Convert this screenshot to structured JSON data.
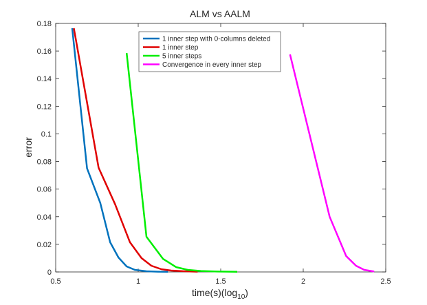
{
  "chart_data": {
    "type": "line",
    "title": "ALM vs AALM",
    "xlabel": "time(s)(log",
    "xlabel_sub": "10",
    "xlabel_close": ")",
    "ylabel": "error",
    "xlim": [
      0.5,
      2.5
    ],
    "ylim": [
      0,
      0.18
    ],
    "xticks": [
      0.5,
      1,
      1.5,
      2,
      2.5
    ],
    "xtick_labels": [
      "0.5",
      "1",
      "1.5",
      "2",
      "2.5"
    ],
    "yticks": [
      0,
      0.02,
      0.04,
      0.06,
      0.08,
      0.1,
      0.12,
      0.14,
      0.16,
      0.18
    ],
    "ytick_labels": [
      "0",
      "0.02",
      "0.04",
      "0.06",
      "0.08",
      "0.1",
      "0.12",
      "0.14",
      "0.16",
      "0.18"
    ],
    "grid": false,
    "legend_position": "top-center",
    "series": [
      {
        "name": "1 inner step with 0-columns deleted",
        "color": "#0072bd",
        "points": [
          [
            0.6,
            0.1765
          ],
          [
            0.69,
            0.075
          ],
          [
            0.77,
            0.05
          ],
          [
            0.83,
            0.0215
          ],
          [
            0.88,
            0.0105
          ],
          [
            0.93,
            0.004
          ],
          [
            0.98,
            0.0015
          ],
          [
            1.05,
            0.0005
          ],
          [
            1.12,
            0.0002
          ],
          [
            1.18,
            0.0001
          ]
        ]
      },
      {
        "name": "1 inner step",
        "color": "#e00000",
        "points": [
          [
            0.61,
            0.1765
          ],
          [
            0.76,
            0.0755
          ],
          [
            0.86,
            0.049
          ],
          [
            0.95,
            0.0215
          ],
          [
            1.02,
            0.01
          ],
          [
            1.08,
            0.0045
          ],
          [
            1.14,
            0.002
          ],
          [
            1.2,
            0.001
          ],
          [
            1.28,
            0.0005
          ],
          [
            1.36,
            0.0002
          ]
        ]
      },
      {
        "name": "5 inner steps",
        "color": "#00ee00",
        "points": [
          [
            0.93,
            0.1585
          ],
          [
            1.05,
            0.0255
          ],
          [
            1.15,
            0.0095
          ],
          [
            1.23,
            0.0035
          ],
          [
            1.3,
            0.0015
          ],
          [
            1.38,
            0.0007
          ],
          [
            1.48,
            0.0003
          ],
          [
            1.6,
            0.0001
          ]
        ]
      },
      {
        "name": "Convergence in every inner step",
        "color": "#ff00ff",
        "points": [
          [
            1.92,
            0.1575
          ],
          [
            2.16,
            0.04
          ],
          [
            2.26,
            0.0115
          ],
          [
            2.32,
            0.0045
          ],
          [
            2.37,
            0.0015
          ],
          [
            2.43,
            0.0003
          ]
        ]
      }
    ]
  }
}
